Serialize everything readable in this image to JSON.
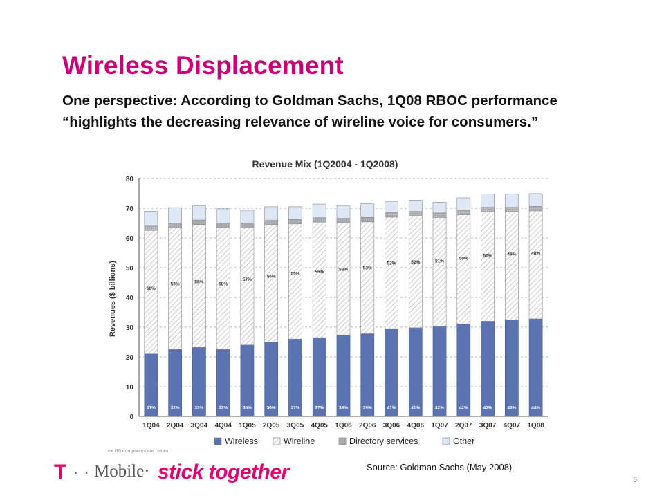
{
  "slide": {
    "title": "Wireless Displacement",
    "subtitle": "One perspective:  According to Goldman Sachs, 1Q08 RBOC performance “highlights the decreasing relevance of wireline voice for consumers.”",
    "source": "Source:  Goldman Sachs (May 2008)",
    "page_number": "5",
    "logo": {
      "t": "T",
      "dots": "· ·",
      "mobile": "Mobile·",
      "slogan": "stick together"
    }
  },
  "chart_data": {
    "type": "bar",
    "stacked": true,
    "title": "Revenue Mix (1Q2004 - 1Q2008)",
    "ylabel": "Revenues ($ billions)",
    "xlabel": "",
    "ylim": [
      0,
      80
    ],
    "yticks": [
      0,
      10,
      20,
      30,
      40,
      50,
      60,
      70,
      80
    ],
    "grid": true,
    "legend_position": "bottom",
    "categories": [
      "1Q04",
      "2Q04",
      "3Q04",
      "4Q04",
      "1Q05",
      "2Q05",
      "3Q05",
      "4Q05",
      "1Q06",
      "2Q06",
      "3Q06",
      "4Q06",
      "1Q07",
      "2Q07",
      "3Q07",
      "4Q07",
      "1Q08"
    ],
    "series": [
      {
        "name": "Wireless",
        "color": "#5b73b0",
        "pattern": "solid",
        "values": [
          21,
          22.5,
          23.2,
          22.5,
          24,
          25,
          26,
          26.5,
          27.3,
          27.8,
          29.5,
          29.8,
          30.2,
          31.1,
          32,
          32.5,
          32.8
        ],
        "labels": [
          "31%",
          "32%",
          "33%",
          "32%",
          "35%",
          "36%",
          "37%",
          "37%",
          "38%",
          "39%",
          "41%",
          "41%",
          "42%",
          "42%",
          "43%",
          "43%",
          "44%"
        ]
      },
      {
        "name": "Wireline",
        "color": "#ffffff",
        "pattern": "hatch",
        "values": [
          41.5,
          41,
          41.3,
          41,
          39.5,
          39.4,
          38.7,
          38.8,
          37.8,
          37.6,
          37.5,
          37.6,
          36.7,
          36.7,
          36.8,
          36.3,
          36.3
        ],
        "labels": [
          "60%",
          "59%",
          "58%",
          "58%",
          "57%",
          "56%",
          "55%",
          "55%",
          "53%",
          "53%",
          "52%",
          "52%",
          "51%",
          "50%",
          "50%",
          "49%",
          "48%"
        ]
      },
      {
        "name": "Directory services",
        "color": "#a9aab0",
        "pattern": "dots",
        "values": [
          1.5,
          1.5,
          1.5,
          1.5,
          1.5,
          1.5,
          1.5,
          1.5,
          1.5,
          1.5,
          1.5,
          1.5,
          1.5,
          1.5,
          1.5,
          1.5,
          1.5
        ]
      },
      {
        "name": "Other",
        "color": "#dde7f6",
        "pattern": "solid",
        "values": [
          5,
          5.2,
          4.8,
          4.8,
          4.3,
          4.6,
          4.3,
          4.6,
          4.3,
          4.6,
          3.8,
          3.8,
          3.6,
          4.2,
          4.5,
          4.5,
          4.3
        ]
      }
    ],
    "footnote": "ex US companies are return"
  }
}
